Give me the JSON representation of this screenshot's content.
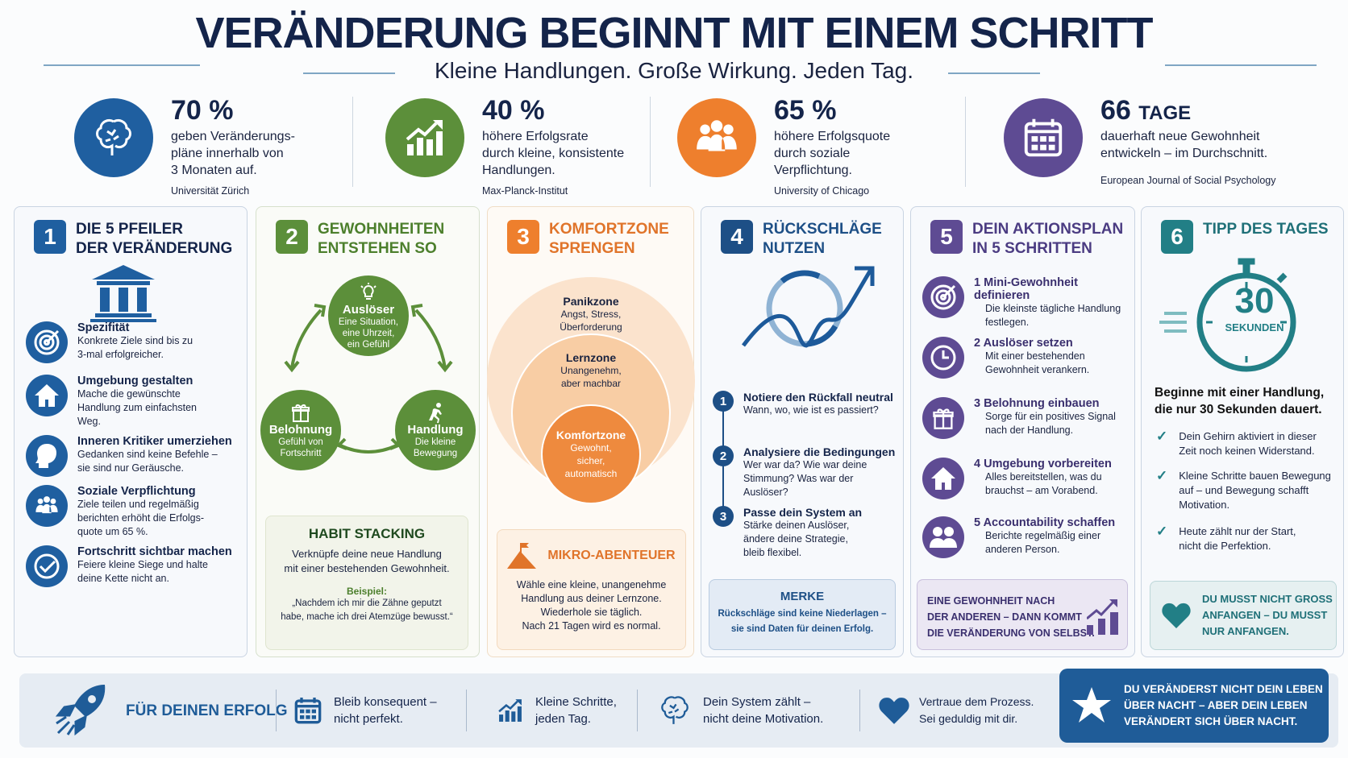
{
  "header": {
    "title": "VERÄNDERUNG BEGINNT MIT EINEM SCHRITT",
    "subtitle": "Kleine Handlungen. Große Wirkung. Jeden Tag."
  },
  "stats": [
    {
      "value": "70 %",
      "desc": [
        "geben Veränderungs-",
        "pläne innerhalb von",
        "3 Monaten auf."
      ],
      "source": "Universität Zürich",
      "icon": "brain-icon",
      "color": "#1f5fa0"
    },
    {
      "value": "40 %",
      "desc": [
        "höhere Erfolgsrate",
        "durch kleine, konsistente",
        "Handlungen."
      ],
      "source": "Max-Planck-Institut",
      "icon": "growth-chart-icon",
      "color": "#5c8f3a"
    },
    {
      "value": "65 %",
      "desc": [
        "höhere Erfolgsquote",
        "durch soziale",
        "Verpflichtung."
      ],
      "source": "University of Chicago",
      "icon": "group-icon",
      "color": "#ee7f2d"
    },
    {
      "value": "66",
      "unit": "TAGE",
      "desc": [
        "dauerhaft neue Gewohnheit",
        "entwickeln – im Durchschnitt."
      ],
      "source": "European Journal of Social Psychology",
      "icon": "calendar-icon",
      "color": "#5e4b93"
    }
  ],
  "panels": {
    "p1": {
      "num": "1",
      "title": [
        "DIE 5 PFEILER",
        "DER VERÄNDERUNG"
      ],
      "color": "#1f5fa0",
      "items": [
        {
          "title": "Spezifität",
          "text": [
            "Konkrete Ziele sind bis zu",
            "3-mal erfolgreicher."
          ],
          "icon": "target-icon"
        },
        {
          "title": "Umgebung gestalten",
          "text": [
            "Mache die gewünschte",
            "Handlung zum einfachsten",
            "Weg."
          ],
          "icon": "house-icon"
        },
        {
          "title": "Inneren Kritiker umerziehen",
          "text": [
            "Gedanken sind keine Befehle –",
            "sie sind nur Geräusche."
          ],
          "icon": "head-icon"
        },
        {
          "title": "Soziale Verpflichtung",
          "text": [
            "Ziele teilen und regelmäßig",
            "berichten erhöht die Erfolgs-",
            "quote um 65 %."
          ],
          "icon": "group-icon"
        },
        {
          "title": "Fortschritt sichtbar machen",
          "text": [
            "Feiere kleine Siege und halte",
            "deine Kette nicht an."
          ],
          "icon": "check-circle-icon"
        }
      ]
    },
    "p2": {
      "num": "2",
      "title": [
        "GEWOHNHEITEN",
        "ENTSTEHEN SO"
      ],
      "color": "#5c8f3a",
      "cycle": [
        {
          "title": "Auslöser",
          "text": [
            "Eine Situation,",
            "eine Uhrzeit,",
            "ein Gefühl"
          ],
          "icon": "lightbulb-icon"
        },
        {
          "title": "Belohnung",
          "text": [
            "Gefühl von",
            "Fortschritt"
          ],
          "icon": "gift-icon"
        },
        {
          "title": "Handlung",
          "text": [
            "Die kleine",
            "Bewegung"
          ],
          "icon": "runner-icon"
        }
      ],
      "box": {
        "title": "HABIT STACKING",
        "text": [
          "Verknüpfe deine neue Handlung",
          "mit einer bestehenden Gewohnheit."
        ],
        "example_label": "Beispiel:",
        "example": [
          "„Nachdem ich mir die Zähne geputzt",
          "habe, mache ich drei Atemzüge bewusst.“"
        ]
      }
    },
    "p3": {
      "num": "3",
      "title": [
        "KOMFORTZONE",
        "SPRENGEN"
      ],
      "color": "#ee7f2d",
      "zones": [
        {
          "title": "Panikzone",
          "text": [
            "Angst, Stress,",
            "Überforderung"
          ]
        },
        {
          "title": "Lernzone",
          "text": [
            "Unangenehm,",
            "aber machbar"
          ]
        },
        {
          "title": "Komfortzone",
          "text": [
            "Gewohnt,",
            "sicher,",
            "automatisch"
          ]
        }
      ],
      "box": {
        "title": "MIKRO-ABENTEUER",
        "text": [
          "Wähle eine kleine, unangenehme",
          "Handlung aus deiner Lernzone.",
          "Wiederhole sie täglich.",
          "Nach 21 Tagen wird es normal."
        ],
        "icon": "mountain-flag-icon"
      }
    },
    "p4": {
      "num": "4",
      "title": [
        "RÜCKSCHLÄGE",
        "NUTZEN"
      ],
      "color": "#1d4f86",
      "steps": [
        {
          "num": "1",
          "title": "Notiere den Rückfall neutral",
          "text": [
            "Wann, wo, wie ist es passiert?"
          ]
        },
        {
          "num": "2",
          "title": "Analysiere die Bedingungen",
          "text": [
            "Wer war da? Wie war deine",
            "Stimmung? Was war der Auslöser?"
          ]
        },
        {
          "num": "3",
          "title": "Passe dein System an",
          "text": [
            "Stärke deinen Auslöser,",
            "ändere deine Strategie,",
            "bleib flexibel."
          ]
        }
      ],
      "box": {
        "title": "MERKE",
        "text": [
          "Rückschläge sind keine Niederlagen –",
          "sie sind Daten für deinen Erfolg."
        ]
      }
    },
    "p5": {
      "num": "5",
      "title": [
        "DEIN AKTIONSPLAN",
        "IN 5 SCHRITTEN"
      ],
      "color": "#5e4b93",
      "items": [
        {
          "num": "1",
          "title": "Mini-Gewohnheit definieren",
          "text": [
            "Die kleinste tägliche Handlung",
            "festlegen."
          ],
          "icon": "target-icon"
        },
        {
          "num": "2",
          "title": "Auslöser setzen",
          "text": [
            "Mit einer bestehenden",
            "Gewohnheit verankern."
          ],
          "icon": "clock-icon"
        },
        {
          "num": "3",
          "title": "Belohnung einbauen",
          "text": [
            "Sorge für ein positives Signal",
            "nach der Handlung."
          ],
          "icon": "gift-icon"
        },
        {
          "num": "4",
          "title": "Umgebung vorbereiten",
          "text": [
            "Alles bereitstellen, was du",
            "brauchst – am Vorabend."
          ],
          "icon": "house-icon"
        },
        {
          "num": "5",
          "title": "Accountability schaffen",
          "text": [
            "Berichte regelmäßig einer",
            "anderen Person."
          ],
          "icon": "two-people-icon"
        }
      ],
      "box": {
        "text": [
          "EINE GEWOHNHEIT NACH",
          "DER ANDEREN – DANN KOMMT",
          "DIE VERÄNDERUNG VON SELBST."
        ],
        "icon": "growth-chart-icon"
      }
    },
    "p6": {
      "num": "6",
      "title": [
        "TIPP DES TAGES"
      ],
      "color": "#227f86",
      "timer": {
        "value": "30",
        "unit": "SEKUNDEN"
      },
      "headline": [
        "Beginne mit einer Handlung,",
        "die nur 30 Sekunden dauert."
      ],
      "checks": [
        [
          "Dein Gehirn aktiviert in dieser",
          "Zeit noch keinen Widerstand."
        ],
        [
          "Kleine Schritte bauen Bewegung",
          "auf – und Bewegung schafft",
          "Motivation."
        ],
        [
          "Heute zählt nur der Start,",
          "nicht die Perfektion."
        ]
      ],
      "box": {
        "text": [
          "DU MUSST NICHT GROSS",
          "ANFANGEN – DU MUSST",
          "NUR ANFANGEN."
        ],
        "icon": "heart-icon"
      }
    }
  },
  "footer": {
    "label": "FÜR DEINEN ERFOLG",
    "items": [
      {
        "text": [
          "Bleib konsequent –",
          "nicht perfekt."
        ],
        "icon": "calendar-icon"
      },
      {
        "text": [
          "Kleine Schritte,",
          "jeden Tag."
        ],
        "icon": "growth-chart-icon"
      },
      {
        "text": [
          "Dein System zählt –",
          "nicht deine Motivation."
        ],
        "icon": "brain-icon"
      },
      {
        "text": [
          "Vertraue dem Prozess.",
          "Sei geduldig mit dir."
        ],
        "icon": "heart-icon"
      }
    ],
    "highlight": [
      "DU VERÄNDERST NICHT DEIN LEBEN",
      "ÜBER NACHT – ABER DEIN LEBEN",
      "VERÄNDERT SICH ÜBER NACHT."
    ]
  }
}
